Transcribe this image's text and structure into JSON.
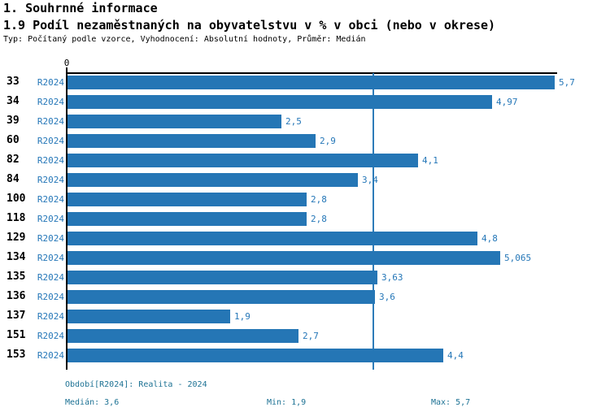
{
  "header": {
    "title": "1. Souhrnné informace",
    "subtitle": "1.9 Podíl nezaměstnaných na obyvatelstvu v % v obci (nebo v okrese)",
    "meta": "Typ: Počítaný podle vzorce, Vyhodnocení: Absolutní hodnoty, Průměr: Medián"
  },
  "chart_data": {
    "type": "bar",
    "orientation": "horizontal",
    "title": "1.9 Podíl nezaměstnaných na obyvatelstvu v % v obci (nebo v okrese)",
    "categories": [
      "33",
      "34",
      "39",
      "60",
      "82",
      "84",
      "100",
      "118",
      "129",
      "134",
      "135",
      "136",
      "137",
      "151",
      "153"
    ],
    "series": [
      {
        "name": "R2024",
        "values": [
          5.7,
          4.97,
          2.5,
          2.9,
          4.1,
          3.4,
          2.8,
          2.8,
          4.8,
          5.065,
          3.63,
          3.6,
          1.9,
          2.7,
          4.4
        ]
      }
    ],
    "value_labels": [
      "5,7",
      "4,97",
      "2,5",
      "2,9",
      "4,1",
      "3,4",
      "2,8",
      "2,8",
      "4,8",
      "5,065",
      "3,63",
      "3,6",
      "1,9",
      "2,7",
      "4,4"
    ],
    "x_axis": {
      "zero_label": "0",
      "max": 5.7
    },
    "median_line_value": 3.6,
    "grid": false,
    "legend_position": "none",
    "bar_color": "#2576b5",
    "label_color": "#2577b8",
    "median_line_color": "#2e7cb9"
  },
  "footer": {
    "period": "Období[R2024]: Realita - 2024",
    "median": "Medián: 3,6",
    "min": "Min: 1,9",
    "max": "Max: 5,7"
  }
}
